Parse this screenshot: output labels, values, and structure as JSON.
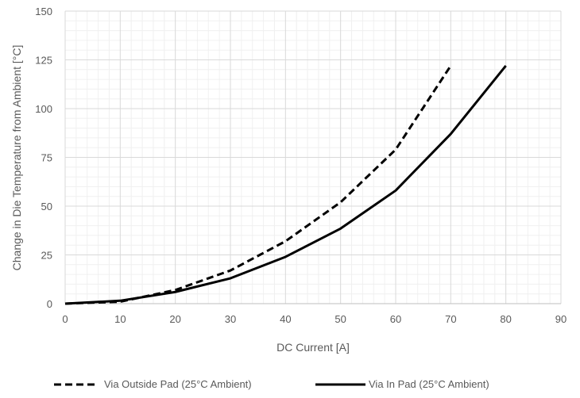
{
  "chart_data": {
    "type": "line",
    "title": "",
    "xlabel": "DC Current [A]",
    "ylabel": "Change in Die Temperature from Ambient [°C]",
    "xlim": [
      0,
      90
    ],
    "ylim": [
      0,
      150
    ],
    "x_ticks": [
      0,
      10,
      20,
      30,
      40,
      50,
      60,
      70,
      80,
      90
    ],
    "y_ticks": [
      0,
      25,
      50,
      75,
      100,
      125,
      150
    ],
    "grid": true,
    "legend_position": "bottom",
    "series": [
      {
        "name": "Via Outside Pad (25°C Ambient)",
        "style": "dashed",
        "color": "#000000",
        "x": [
          0,
          10,
          20,
          30,
          40,
          50,
          60,
          70
        ],
        "y": [
          0,
          1,
          7,
          17,
          32,
          52,
          79,
          122
        ]
      },
      {
        "name": "Via In Pad (25°C Ambient)",
        "style": "solid",
        "color": "#000000",
        "x": [
          0,
          10,
          20,
          30,
          40,
          50,
          60,
          70,
          80
        ],
        "y": [
          0,
          1.5,
          6,
          13,
          24,
          38.5,
          58,
          87,
          122
        ]
      }
    ]
  }
}
